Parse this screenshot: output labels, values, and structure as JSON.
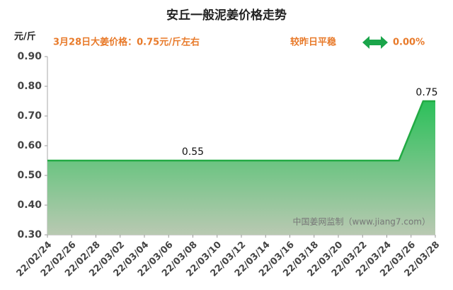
{
  "chart_data": {
    "type": "area",
    "title": "安丘一般泥姜价格走势",
    "y_label": "元/斤",
    "price_note": "3月28日大姜价格：0.75元/斤左右",
    "change_note": "较昨日平稳",
    "change_value": "0.00%",
    "watermark": "中国姜网监制（www.jiang7.com）",
    "categories": [
      "22/02/24",
      null,
      "22/02/26",
      null,
      "22/02/28",
      null,
      "22/03/02",
      null,
      "22/03/04",
      null,
      "22/03/06",
      null,
      "22/03/08",
      null,
      "22/03/10",
      null,
      "22/03/12",
      null,
      "22/03/14",
      null,
      "22/03/16",
      null,
      "22/03/18",
      null,
      "22/03/20",
      null,
      "22/03/22",
      null,
      "22/03/24",
      null,
      "22/03/26",
      null,
      "22/03/28"
    ],
    "values": [
      0.55,
      0.55,
      0.55,
      0.55,
      0.55,
      0.55,
      0.55,
      0.55,
      0.55,
      0.55,
      0.55,
      0.55,
      0.55,
      0.55,
      0.55,
      0.55,
      0.55,
      0.55,
      0.55,
      0.55,
      0.55,
      0.55,
      0.55,
      0.55,
      0.55,
      0.55,
      0.55,
      0.55,
      0.55,
      0.55,
      0.65,
      0.75,
      0.75
    ],
    "value_labels": [
      null,
      null,
      null,
      null,
      null,
      null,
      null,
      null,
      null,
      null,
      null,
      null,
      "0.55",
      null,
      null,
      null,
      null,
      null,
      null,
      null,
      null,
      null,
      null,
      null,
      null,
      null,
      null,
      null,
      null,
      null,
      null,
      null,
      "0.75"
    ],
    "color": "#22aa44",
    "ylim": [
      0.3,
      0.9
    ],
    "yticks": [
      {
        "value": 0.3,
        "label": "0.30"
      },
      {
        "value": 0.4,
        "label": "0.40"
      },
      {
        "value": 0.5,
        "label": "0.50"
      },
      {
        "value": 0.6,
        "label": "0.60"
      },
      {
        "value": 0.7,
        "label": "0.70"
      },
      {
        "value": 0.8,
        "label": "0.80"
      },
      {
        "value": 0.9,
        "label": "0.90"
      }
    ],
    "grid": false
  }
}
